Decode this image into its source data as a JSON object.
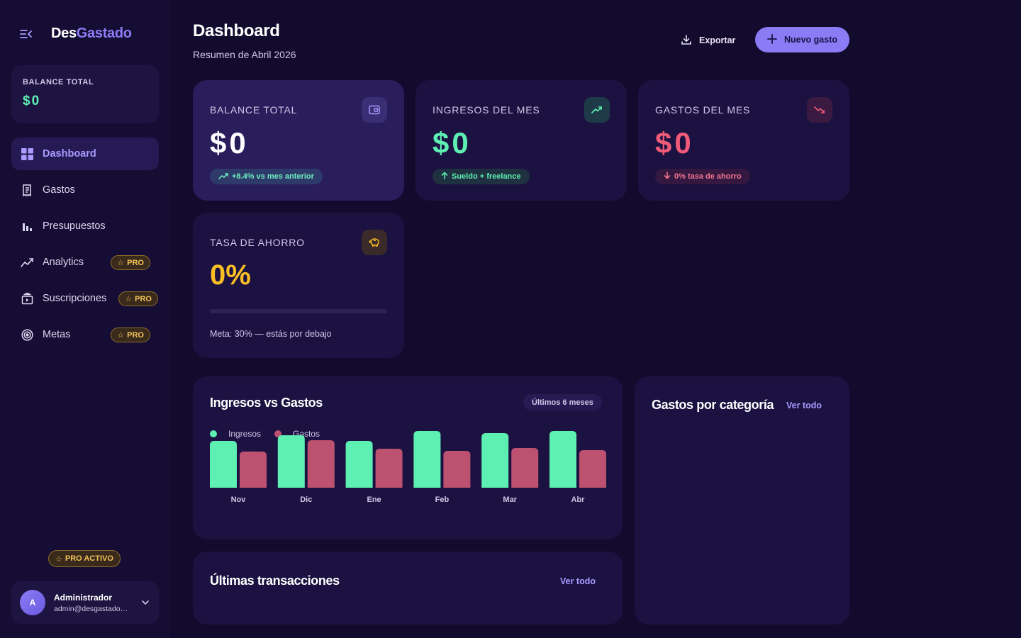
{
  "brand": {
    "part1": "Des",
    "part2": "Gastado"
  },
  "sidebar": {
    "balance_label": "BALANCE TOTAL",
    "balance_value": "$0",
    "items": [
      {
        "label": "Dashboard",
        "icon": "grid-icon",
        "active": true
      },
      {
        "label": "Gastos",
        "icon": "receipt-icon"
      },
      {
        "label": "Presupuestos",
        "icon": "bar-chart-icon"
      },
      {
        "label": "Analytics",
        "icon": "trend-icon",
        "badge": "PRO"
      },
      {
        "label": "Suscripciones",
        "icon": "subscriptions-icon",
        "badge": "PRO"
      },
      {
        "label": "Metas",
        "icon": "target-icon",
        "badge": "PRO"
      }
    ],
    "pro_active": "PRO ACTIVO",
    "user": {
      "initial": "A",
      "name": "Administrador",
      "email": "admin@desgastado.com"
    }
  },
  "header": {
    "title": "Dashboard",
    "subtitle": "Resumen de Abril 2026",
    "export_label": "Exportar",
    "new_label": "Nuevo gasto"
  },
  "stats": {
    "balance": {
      "label": "BALANCE TOTAL",
      "value": "$0",
      "pill": "+8.4% vs mes anterior"
    },
    "income": {
      "label": "INGRESOS DEL MES",
      "value": "$0",
      "pill": "Sueldo + freelance"
    },
    "expenses": {
      "label": "GASTOS DEL MES",
      "value": "$0",
      "pill": "0% tasa de ahorro"
    },
    "savings": {
      "label": "TASA DE AHORRO",
      "value": "0%",
      "progress": 0,
      "note": "Meta: 30% — estás por debajo"
    }
  },
  "chart_card": {
    "title": "Ingresos vs Gastos",
    "range": "Últimos 6 meses"
  },
  "chart_data": {
    "type": "bar",
    "categories": [
      "Nov",
      "Dic",
      "Ene",
      "Feb",
      "Mar",
      "Abr"
    ],
    "series": [
      {
        "name": "Ingresos",
        "values": [
          66,
          74,
          66,
          80,
          77,
          80
        ]
      },
      {
        "name": "Gastos",
        "values": [
          51,
          67,
          55,
          52,
          56,
          53
        ]
      }
    ],
    "ylim": [
      0,
      80
    ],
    "colors": {
      "Ingresos": "#5ef0b2",
      "Gastos": "#bd5170"
    }
  },
  "category_card": {
    "title": "Gastos por categoría",
    "link": "Ver todo"
  },
  "transactions_card": {
    "title": "Últimas transacciones",
    "link": "Ver todo"
  },
  "colors": {
    "accent": "#8b7cf6",
    "income": "#5ef0b2",
    "expense": "#f15b7a",
    "savings": "#fbbf24"
  }
}
